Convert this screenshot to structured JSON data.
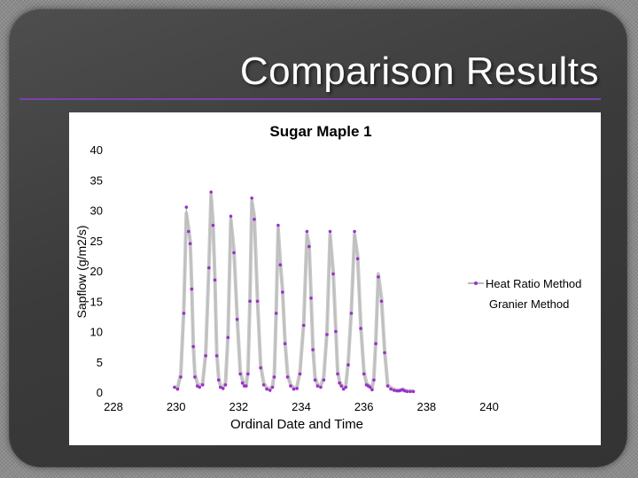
{
  "slide": {
    "title": "Comparison Results"
  },
  "colors": {
    "heat_ratio_marker": "#9b30c8",
    "granier_line": "#c8c8c8",
    "title_rule": "#7d3fb0"
  },
  "chart_data": {
    "type": "line",
    "title": "Sugar Maple 1",
    "xlabel": "Ordinal Date and Time",
    "ylabel": "Sapflow (g/m2/s)",
    "xlim": [
      228,
      240
    ],
    "ylim": [
      0,
      40
    ],
    "x_ticks": [
      "228",
      "230",
      "232",
      "234",
      "236",
      "238",
      "240"
    ],
    "y_ticks": [
      "0",
      "5",
      "10",
      "15",
      "20",
      "25",
      "30",
      "35",
      "40"
    ],
    "legend_position": "right",
    "grid": false,
    "series": [
      {
        "name": "Heat Ratio Method",
        "style": "line-with-markers",
        "x": [
          229.95,
          230.05,
          230.15,
          230.25,
          230.33,
          230.4,
          230.45,
          230.5,
          230.55,
          230.6,
          230.68,
          230.75,
          230.85,
          230.95,
          231.05,
          231.12,
          231.18,
          231.24,
          231.3,
          231.36,
          231.42,
          231.5,
          231.58,
          231.66,
          231.75,
          231.85,
          231.95,
          232.05,
          232.12,
          232.18,
          232.24,
          232.3,
          232.36,
          232.42,
          232.5,
          232.6,
          232.7,
          232.8,
          232.9,
          233.0,
          233.08,
          233.14,
          233.2,
          233.26,
          233.33,
          233.4,
          233.48,
          233.56,
          233.66,
          233.76,
          233.86,
          233.96,
          234.08,
          234.18,
          234.25,
          234.31,
          234.37,
          234.44,
          234.52,
          234.62,
          234.72,
          234.82,
          234.92,
          235.02,
          235.1,
          235.16,
          235.22,
          235.28,
          235.35,
          235.42,
          235.5,
          235.6,
          235.7,
          235.8,
          235.9,
          236.0,
          236.08,
          236.14,
          236.2,
          236.26,
          236.32,
          236.38,
          236.46,
          236.56,
          236.66,
          236.76,
          236.86,
          236.96,
          237.05,
          237.12,
          237.18,
          237.24,
          237.3,
          237.38,
          237.48,
          237.58
        ],
        "y": [
          0.8,
          0.5,
          2.5,
          13.0,
          30.5,
          26.5,
          24.5,
          17.0,
          7.5,
          2.5,
          1.0,
          0.8,
          1.2,
          6.0,
          20.5,
          33.0,
          27.5,
          18.5,
          6.0,
          2.0,
          0.8,
          0.6,
          1.2,
          9.0,
          29.0,
          23.0,
          12.0,
          3.0,
          1.5,
          1.0,
          1.0,
          3.0,
          15.0,
          32.0,
          28.5,
          15.0,
          4.0,
          1.2,
          0.5,
          0.3,
          0.8,
          2.5,
          13.0,
          27.5,
          21.0,
          16.5,
          8.0,
          2.5,
          1.0,
          0.5,
          0.6,
          3.0,
          11.0,
          26.5,
          24.0,
          15.5,
          7.0,
          2.0,
          1.0,
          0.8,
          2.0,
          9.5,
          26.5,
          19.5,
          10.0,
          3.0,
          1.5,
          1.0,
          0.5,
          0.8,
          4.5,
          13.0,
          26.5,
          22.0,
          10.5,
          3.0,
          1.2,
          1.0,
          0.8,
          0.4,
          2.0,
          8.0,
          19.0,
          15.0,
          6.5,
          1.0,
          0.5,
          0.3,
          0.2,
          0.2,
          0.3,
          0.4,
          0.2,
          0.1,
          0.1,
          0.1
        ]
      },
      {
        "name": "Granier Method",
        "style": "line",
        "x": [
          229.95,
          230.05,
          230.15,
          230.25,
          230.33,
          230.4,
          230.45,
          230.5,
          230.55,
          230.6,
          230.68,
          230.75,
          230.85,
          230.95,
          231.05,
          231.12,
          231.18,
          231.24,
          231.3,
          231.36,
          231.42,
          231.5,
          231.58,
          231.66,
          231.75,
          231.85,
          231.95,
          232.05,
          232.12,
          232.18,
          232.24,
          232.3,
          232.36,
          232.42,
          232.5,
          232.6,
          232.7,
          232.8,
          232.9,
          233.0,
          233.08,
          233.14,
          233.2,
          233.26,
          233.33,
          233.4,
          233.48,
          233.56,
          233.66,
          233.76,
          233.86,
          233.96,
          234.08,
          234.18,
          234.25,
          234.31,
          234.37,
          234.44,
          234.52,
          234.62,
          234.72,
          234.82,
          234.92,
          235.02,
          235.1,
          235.16,
          235.22,
          235.28,
          235.35,
          235.42,
          235.5,
          235.6,
          235.7,
          235.8,
          235.9,
          236.0,
          236.08,
          236.14,
          236.2,
          236.26,
          236.32,
          236.38,
          236.46,
          236.56,
          236.66,
          236.76,
          236.86,
          236.96,
          237.05,
          237.12,
          237.18,
          237.24,
          237.3,
          237.38,
          237.48,
          237.58
        ],
        "y": [
          0.9,
          0.7,
          3.0,
          14.0,
          29.5,
          27.0,
          25.0,
          18.0,
          8.0,
          3.0,
          1.5,
          1.0,
          1.5,
          6.5,
          21.0,
          32.5,
          28.0,
          19.0,
          6.5,
          2.5,
          1.0,
          0.8,
          1.5,
          9.5,
          28.5,
          23.5,
          12.5,
          3.5,
          2.0,
          1.2,
          1.2,
          3.5,
          15.5,
          31.5,
          29.0,
          15.5,
          4.5,
          1.5,
          0.7,
          0.5,
          1.0,
          3.0,
          13.5,
          27.0,
          21.5,
          17.0,
          8.5,
          3.0,
          1.2,
          0.7,
          0.8,
          3.5,
          11.5,
          26.0,
          24.5,
          16.0,
          7.5,
          2.5,
          1.2,
          1.0,
          2.5,
          10.0,
          26.0,
          20.0,
          10.5,
          3.5,
          1.8,
          1.2,
          0.7,
          1.0,
          5.0,
          13.5,
          26.0,
          22.5,
          11.0,
          3.5,
          1.5,
          1.2,
          1.0,
          0.6,
          2.5,
          8.5,
          19.5,
          15.5,
          7.0,
          1.2,
          0.7,
          0.5,
          0.3,
          0.3,
          0.4,
          0.5,
          0.3,
          0.2,
          0.2,
          0.2
        ]
      }
    ]
  }
}
